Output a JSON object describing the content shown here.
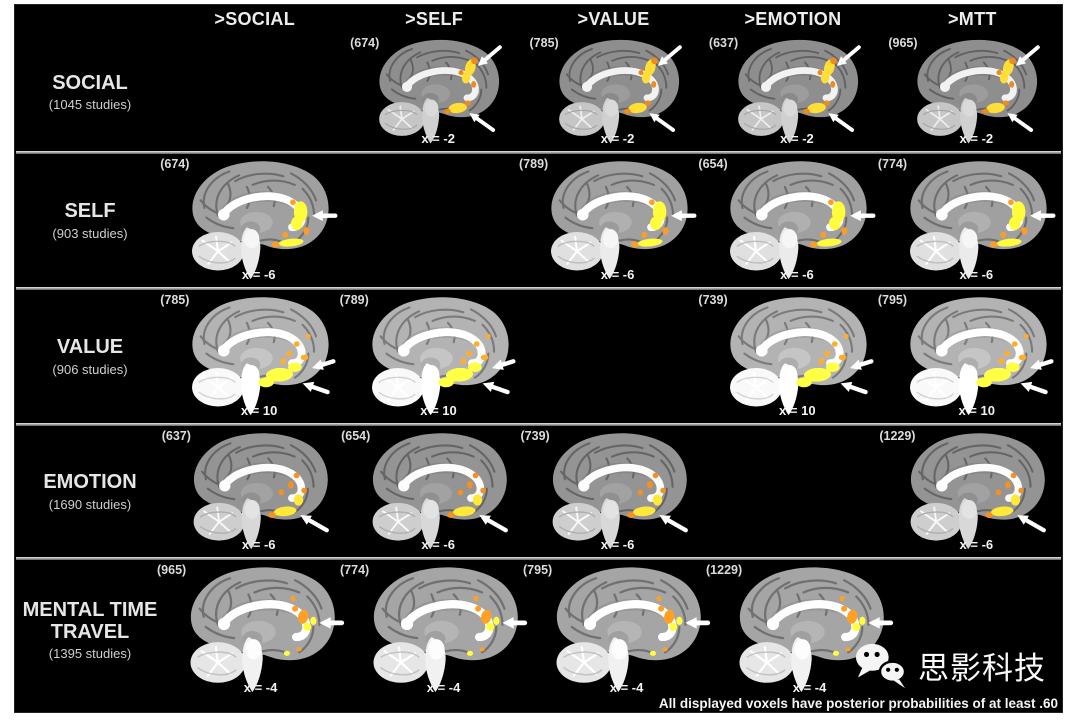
{
  "figure_caption": "All displayed voxels have posterior probabilities of at least .60",
  "watermark": {
    "text": "思影科技",
    "icon": "wechat-logo"
  },
  "columns": [
    ">SOCIAL",
    ">SELF",
    ">VALUE",
    ">EMOTION",
    ">MTT"
  ],
  "rows": [
    {
      "label": "SOCIAL",
      "studies": "(1045 studies)",
      "slice": "x = -2",
      "pattern": "dorsal-ventral",
      "cells": [
        null,
        "(674)",
        "(785)",
        "(637)",
        "(965)"
      ]
    },
    {
      "label": "SELF",
      "studies": "(903 studies)",
      "slice": "x = -6",
      "pattern": "mid-frontal",
      "cells": [
        "(674)",
        null,
        "(789)",
        "(654)",
        "(774)"
      ]
    },
    {
      "label": "VALUE",
      "studies": "(906 studies)",
      "slice": "x = 10",
      "pattern": "ventral",
      "cells": [
        "(785)",
        "(789)",
        null,
        "(739)",
        "(795)"
      ]
    },
    {
      "label": "EMOTION",
      "studies": "(1690 studies)",
      "slice": "x = -6",
      "pattern": "ventral-strip",
      "cells": [
        "(637)",
        "(654)",
        "(739)",
        null,
        "(1229)"
      ]
    },
    {
      "label": "MENTAL TIME TRAVEL",
      "studies": "(1395 studies)",
      "slice": "x = -4",
      "pattern": "mid-scatter",
      "cells": [
        "(965)",
        "(774)",
        "(795)",
        "(1229)",
        null
      ]
    }
  ],
  "colors": {
    "panel_background": "#000000",
    "page_background": "#ffffff",
    "text": "#f0f0f0",
    "activation_yellow": "#ffdf35",
    "activation_orange": "#ee8a1e",
    "arrow": "#ffffff",
    "separator": "#9a9a9a"
  }
}
